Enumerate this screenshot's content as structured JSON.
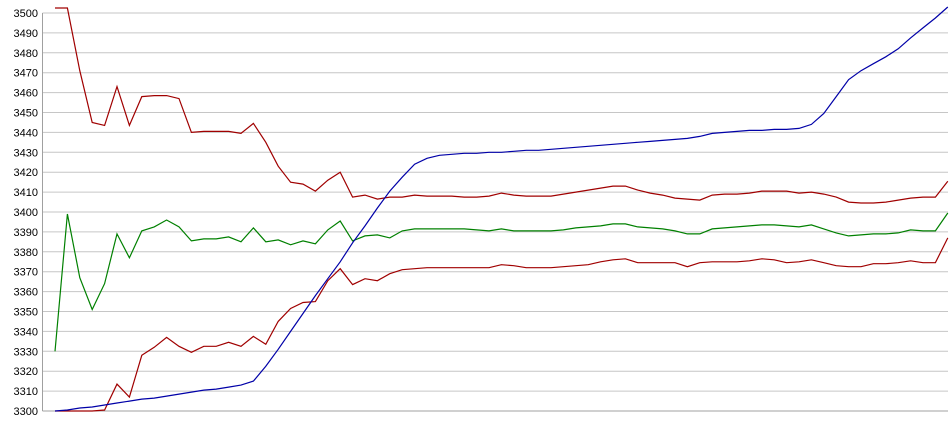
{
  "chart_data": {
    "type": "line",
    "title": "",
    "subtitle": "",
    "xlabel": "",
    "ylabel": "",
    "legend": "none",
    "grid": {
      "horizontal": true,
      "vertical": false,
      "color": "#c6c6c6"
    },
    "axis_color": "#a0a0a0",
    "label_color": "#000000",
    "background": "#ffffff",
    "y_axis": {
      "min": 3300,
      "max": 3500,
      "step": 10,
      "tick_labels": [
        "3500",
        "3490",
        "3480",
        "3470",
        "3460",
        "3450",
        "3440",
        "3430",
        "3420",
        "3410",
        "3400",
        "3390",
        "3380",
        "3370",
        "3360",
        "3350",
        "3340",
        "3330",
        "3320",
        "3310",
        "3300"
      ]
    },
    "x_axis": {
      "tick_labels": [],
      "points": 73
    },
    "series": [
      {
        "id": "series-1-dark-red-upper",
        "color": "#a00000",
        "values": [
          3502.5,
          3502.5,
          3471,
          3445,
          3443.5,
          3463,
          3443.5,
          3458,
          3458.5,
          3458.5,
          3457,
          3440,
          3440.5,
          3440.5,
          3440.5,
          3439.5,
          3444.5,
          3435,
          3423,
          3415,
          3414,
          3410.5,
          3416,
          3420,
          3407.5,
          3408.5,
          3406.5,
          3407.5,
          3407.5,
          3408.5,
          3408,
          3408,
          3408,
          3407.5,
          3407.5,
          3408,
          3409.5,
          3408.5,
          3408,
          3408,
          3408,
          3409,
          3410,
          3411,
          3412,
          3413,
          3413,
          3411,
          3409.5,
          3408.5,
          3407,
          3406.5,
          3406,
          3408.5,
          3409,
          3409,
          3409.5,
          3410.5,
          3410.5,
          3410.5,
          3409.5,
          3410,
          3409,
          3407.5,
          3405,
          3404.5,
          3404.5,
          3405,
          3406,
          3407,
          3407.5,
          3407.5,
          3415.5
        ]
      },
      {
        "id": "series-4-dark-red-lower",
        "color": "#a00000",
        "values": [
          3300,
          3300,
          3300,
          3300,
          3300.5,
          3313.5,
          3307,
          3328,
          3332,
          3337,
          3332.5,
          3329.5,
          3332.5,
          3332.5,
          3334.5,
          3332.5,
          3337.5,
          3333.5,
          3345,
          3351.5,
          3354.5,
          3355,
          3365.5,
          3371.5,
          3363.5,
          3366.5,
          3365.5,
          3369,
          3371,
          3371.5,
          3372,
          3372,
          3372,
          3372,
          3372,
          3372,
          3373.5,
          3373,
          3372,
          3372,
          3372,
          3372.5,
          3373,
          3373.5,
          3375,
          3376,
          3376.5,
          3374.5,
          3374.5,
          3374.5,
          3374.5,
          3372.5,
          3374.5,
          3375,
          3375,
          3375,
          3375.5,
          3376.5,
          3376,
          3374.5,
          3375,
          3376,
          3374.5,
          3373,
          3372.5,
          3372.5,
          3374,
          3374,
          3374.5,
          3375.5,
          3374.5,
          3374.5,
          3387
        ]
      },
      {
        "id": "series-3-green",
        "color": "#008000",
        "values": [
          3330,
          3399,
          3367,
          3351,
          3364,
          3389,
          3377,
          3390.5,
          3392.5,
          3396,
          3392.5,
          3385.5,
          3386.5,
          3386.5,
          3387.5,
          3385,
          3392,
          3385,
          3386,
          3383.5,
          3385.5,
          3384,
          3391,
          3395.5,
          3385.5,
          3388,
          3388.5,
          3387,
          3390.5,
          3391.5,
          3391.5,
          3391.5,
          3391.5,
          3391.5,
          3391,
          3390.5,
          3391.5,
          3390.5,
          3390.5,
          3390.5,
          3390.5,
          3391,
          3392,
          3392.5,
          3393,
          3394,
          3394,
          3392.5,
          3392,
          3391.5,
          3390.5,
          3389,
          3389,
          3391.5,
          3392,
          3392.5,
          3393,
          3393.5,
          3393.5,
          3393,
          3392.5,
          3393.5,
          3391.5,
          3389.5,
          3388,
          3388.5,
          3389,
          3389,
          3389.5,
          3391,
          3390.5,
          3390.5,
          3399.5
        ]
      },
      {
        "id": "series-2-blue",
        "color": "#0000a8",
        "values": [
          3300,
          3300.5,
          3301.5,
          3302,
          3303,
          3304,
          3305,
          3306,
          3306.5,
          3307.5,
          3308.5,
          3309.5,
          3310.5,
          3311,
          3312,
          3313,
          3315,
          3322.5,
          3331,
          3340,
          3349,
          3358,
          3366.5,
          3375,
          3384.5,
          3393,
          3402,
          3410.5,
          3417.5,
          3424,
          3427,
          3428.5,
          3429,
          3429.5,
          3429.5,
          3430,
          3430,
          3430.5,
          3431,
          3431,
          3431.5,
          3432,
          3432.5,
          3433,
          3433.5,
          3434,
          3434.5,
          3435,
          3435.5,
          3436,
          3436.5,
          3437,
          3438,
          3439.5,
          3440,
          3440.5,
          3441,
          3441,
          3441.5,
          3441.5,
          3442,
          3444,
          3449.5,
          3458,
          3466.5,
          3471,
          3474.5,
          3478,
          3482,
          3487.5,
          3492.5,
          3497.5,
          3503
        ]
      }
    ]
  }
}
